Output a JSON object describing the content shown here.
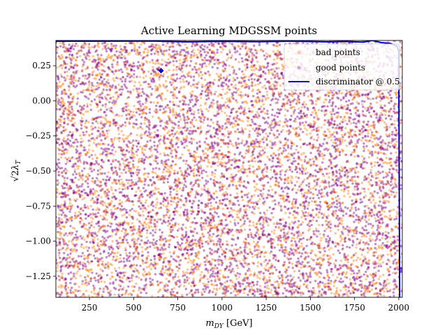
{
  "chart_data": {
    "type": "scatter",
    "title": "Active Learning MDGSSM points",
    "xlabel": "m_DY [GeV]",
    "xlabel_main": "m",
    "xlabel_sub": "DY",
    "xlabel_unit": " [GeV]",
    "ylabel": "√2 λ_T",
    "ylabel_root": "√2",
    "ylabel_lambda": "λ",
    "ylabel_sub": "T",
    "xlim": [
      60,
      2020
    ],
    "ylim": [
      -1.4,
      0.43
    ],
    "xticks": [
      250,
      500,
      750,
      1000,
      1250,
      1500,
      1750,
      2000
    ],
    "xtick_labels": [
      "250",
      "500",
      "750",
      "1000",
      "1250",
      "1500",
      "1750",
      "2000"
    ],
    "yticks": [
      0.25,
      0.0,
      -0.25,
      -0.5,
      -0.75,
      -1.0,
      -1.25
    ],
    "ytick_labels": [
      "0.25",
      "0.00",
      "−0.25",
      "−0.50",
      "−0.75",
      "−1.00",
      "−1.25"
    ],
    "grid": false,
    "legend_position": "upper-right",
    "series": [
      {
        "name": "bad points",
        "color": "#ff7f0e",
        "style": "scatter-dense-uniform",
        "opacity": 0.45
      },
      {
        "name": "good points",
        "color": "#800080",
        "style": "scatter-dense-uniform",
        "opacity": 0.45
      },
      {
        "name": "discriminator @ 0.5",
        "color": "#0000cd",
        "style": "contour-line",
        "x": [
          60,
          300,
          600,
          800,
          1000,
          1200,
          1400,
          1600,
          1700,
          1800,
          1850,
          1900,
          1950,
          1990,
          2000,
          2005
        ],
        "y": [
          0.425,
          0.425,
          0.426,
          0.42,
          0.424,
          0.421,
          0.425,
          0.42,
          0.423,
          0.418,
          0.43,
          0.415,
          0.41,
          0.39,
          0.35,
          -1.4
        ]
      }
    ],
    "island": {
      "x": 655,
      "y": 0.215,
      "color": "#0000cd"
    }
  }
}
